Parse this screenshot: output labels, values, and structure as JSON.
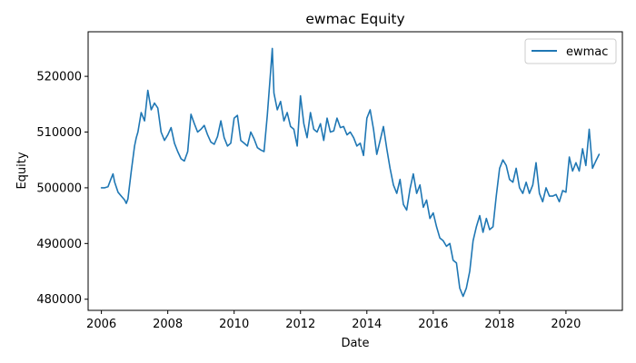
{
  "chart_data": {
    "type": "line",
    "title": "ewmac Equity",
    "xlabel": "Date",
    "ylabel": "Equity",
    "xlim": [
      2005.6,
      2021.7
    ],
    "ylim": [
      478000,
      528000
    ],
    "xticks": [
      2006,
      2008,
      2010,
      2012,
      2014,
      2016,
      2018,
      2020
    ],
    "yticks": [
      480000,
      490000,
      500000,
      510000,
      520000
    ],
    "grid": false,
    "legend": {
      "position": "top-right",
      "entries": [
        "ewmac"
      ]
    },
    "series": [
      {
        "name": "ewmac",
        "color": "#1f77b4",
        "x": [
          2006.0,
          2006.1,
          2006.2,
          2006.3,
          2006.35,
          2006.4,
          2006.5,
          2006.6,
          2006.7,
          2006.75,
          2006.8,
          2006.9,
          2007.0,
          2007.05,
          2007.1,
          2007.2,
          2007.3,
          2007.4,
          2007.5,
          2007.6,
          2007.7,
          2007.8,
          2007.9,
          2008.0,
          2008.1,
          2008.2,
          2008.3,
          2008.4,
          2008.5,
          2008.6,
          2008.7,
          2008.8,
          2008.9,
          2009.0,
          2009.1,
          2009.2,
          2009.3,
          2009.4,
          2009.5,
          2009.6,
          2009.7,
          2009.8,
          2009.9,
          2010.0,
          2010.1,
          2010.2,
          2010.3,
          2010.4,
          2010.5,
          2010.6,
          2010.7,
          2010.8,
          2010.9,
          2011.0,
          2011.1,
          2011.15,
          2011.2,
          2011.3,
          2011.4,
          2011.5,
          2011.6,
          2011.7,
          2011.8,
          2011.9,
          2012.0,
          2012.1,
          2012.2,
          2012.3,
          2012.4,
          2012.5,
          2012.6,
          2012.7,
          2012.8,
          2012.9,
          2013.0,
          2013.1,
          2013.2,
          2013.3,
          2013.4,
          2013.5,
          2013.6,
          2013.7,
          2013.8,
          2013.9,
          2014.0,
          2014.1,
          2014.2,
          2014.3,
          2014.4,
          2014.5,
          2014.6,
          2014.7,
          2014.8,
          2014.9,
          2015.0,
          2015.1,
          2015.2,
          2015.3,
          2015.4,
          2015.5,
          2015.6,
          2015.7,
          2015.8,
          2015.9,
          2016.0,
          2016.1,
          2016.2,
          2016.3,
          2016.4,
          2016.5,
          2016.6,
          2016.7,
          2016.8,
          2016.9,
          2017.0,
          2017.1,
          2017.2,
          2017.3,
          2017.4,
          2017.5,
          2017.6,
          2017.7,
          2017.8,
          2017.9,
          2018.0,
          2018.1,
          2018.2,
          2018.3,
          2018.4,
          2018.5,
          2018.6,
          2018.7,
          2018.8,
          2018.9,
          2019.0,
          2019.1,
          2019.2,
          2019.3,
          2019.4,
          2019.5,
          2019.6,
          2019.7,
          2019.8,
          2019.9,
          2020.0,
          2020.1,
          2020.2,
          2020.3,
          2020.4,
          2020.5,
          2020.6,
          2020.7,
          2020.8,
          2020.9,
          2021.0
        ],
        "y": [
          500000,
          500000,
          500200,
          501800,
          502500,
          501000,
          499200,
          498500,
          497800,
          497200,
          498000,
          503000,
          507500,
          509000,
          510000,
          513500,
          512000,
          517500,
          514000,
          515200,
          514300,
          510000,
          508500,
          509500,
          510800,
          508000,
          506500,
          505200,
          504800,
          506500,
          513200,
          511500,
          510000,
          510500,
          511200,
          509500,
          508200,
          507800,
          509200,
          512000,
          509000,
          507500,
          508000,
          512500,
          513000,
          508500,
          508000,
          507500,
          510000,
          508800,
          507200,
          506800,
          506500,
          513000,
          521000,
          525000,
          517000,
          514000,
          515500,
          512000,
          513500,
          511000,
          510500,
          507500,
          516500,
          511500,
          509000,
          513500,
          510500,
          510000,
          511500,
          508500,
          512500,
          510000,
          510200,
          512500,
          510800,
          511000,
          509500,
          510000,
          509000,
          507500,
          508000,
          505800,
          512500,
          514000,
          510500,
          506000,
          508500,
          511000,
          507000,
          503500,
          500500,
          499000,
          501500,
          497000,
          496000,
          499800,
          502500,
          499000,
          500500,
          496500,
          497800,
          494500,
          495500,
          493000,
          491000,
          490500,
          489500,
          490000,
          487000,
          486500,
          482000,
          480500,
          482000,
          485000,
          490500,
          493000,
          495000,
          492000,
          494500,
          492500,
          493000,
          498500,
          503500,
          505000,
          504000,
          501500,
          501000,
          503500,
          500000,
          499000,
          501000,
          499000,
          500500,
          504500,
          499000,
          497500,
          500000,
          498500,
          498500,
          498800,
          497500,
          499500,
          499200,
          505500,
          503000,
          504500,
          503000,
          507000,
          504000,
          510500,
          503500,
          504800,
          506000
        ]
      }
    ]
  }
}
